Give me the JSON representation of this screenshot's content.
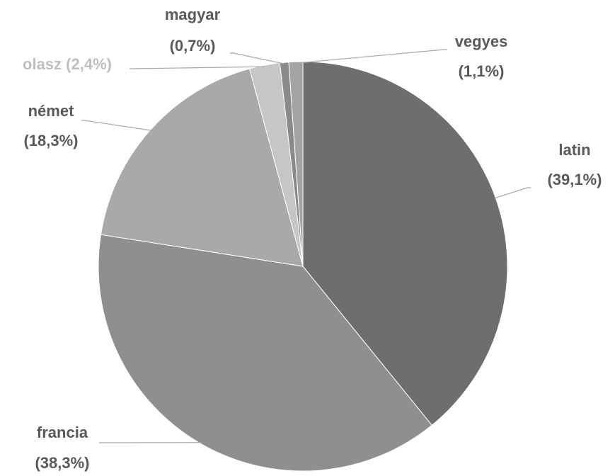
{
  "chart_data": {
    "type": "pie",
    "categories": [
      "latin",
      "francia",
      "német",
      "olasz",
      "magyar",
      "vegyes"
    ],
    "values": [
      39.1,
      38.3,
      18.3,
      2.4,
      0.7,
      1.1
    ],
    "value_labels": [
      "(39,1%)",
      "(38,3%)",
      "(18,3%)",
      "(2,4%)",
      "(0,7%)",
      "(1,1%)"
    ],
    "colors": [
      "#6e6e6e",
      "#8f8f8f",
      "#a9a9a9",
      "#c6c6c6",
      "#8a8a8a",
      "#a3a3a3"
    ]
  }
}
